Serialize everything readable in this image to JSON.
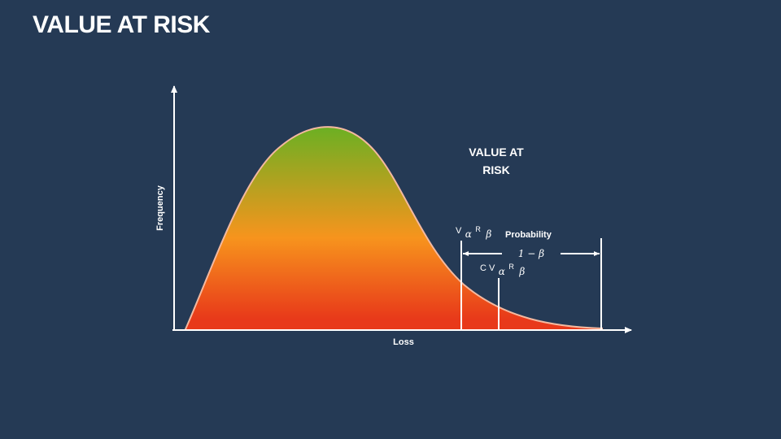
{
  "title": "VALUE AT RISK",
  "diagram": {
    "axis_y_label": "Frequency",
    "axis_x_label": "Loss",
    "var_heading_line1": "VALUE AT",
    "var_heading_line2": "RISK",
    "var_label": {
      "V": "V",
      "alpha": "α",
      "R": "R",
      "beta": "β"
    },
    "cvar_label": {
      "CV": "C V",
      "alpha": "α",
      "R": "R",
      "beta": "β"
    },
    "probability_label": "Probability",
    "one_minus_beta": "1 − β",
    "colors": {
      "background": "#253a55",
      "gradient_top": "#6ab023",
      "gradient_mid": "#f7941d",
      "gradient_bottom": "#e8391a",
      "curve_outline": "#f4b9a0",
      "axis": "#ffffff"
    }
  }
}
